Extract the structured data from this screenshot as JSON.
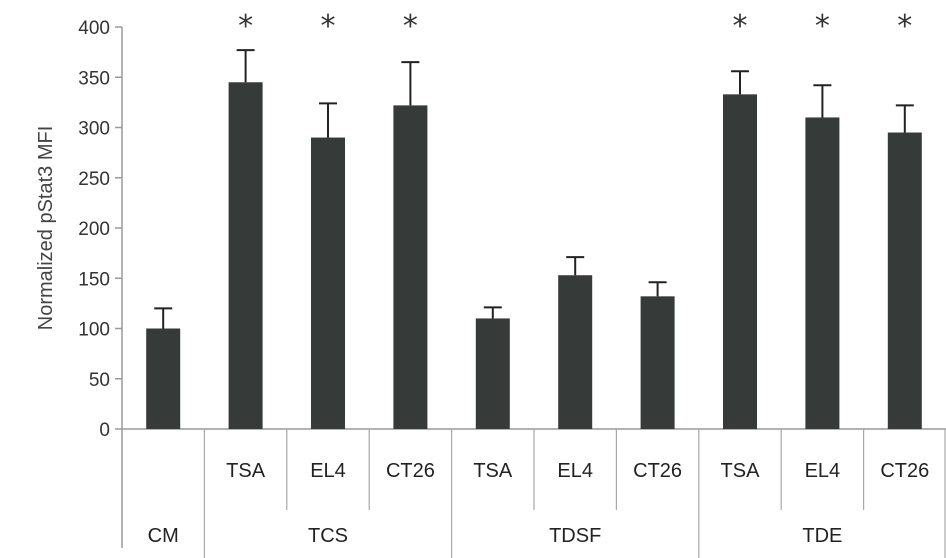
{
  "chart_data": {
    "type": "bar",
    "ylabel": "Normalized pStat3 MFI",
    "ylim": [
      0,
      400
    ],
    "yticks": [
      0,
      50,
      100,
      150,
      200,
      250,
      300,
      350,
      400
    ],
    "categories": [
      "CM",
      "TSA",
      "EL4",
      "CT26",
      "TSA",
      "EL4",
      "CT26",
      "TSA",
      "EL4",
      "CT26"
    ],
    "groups": [
      "CM",
      "TCS",
      "TCS",
      "TCS",
      "TDSF",
      "TDSF",
      "TDSF",
      "TDE",
      "TDE",
      "TDE"
    ],
    "group_labels": [
      {
        "label": "CM",
        "span": [
          0,
          0
        ]
      },
      {
        "label": "TCS",
        "span": [
          1,
          3
        ]
      },
      {
        "label": "TDSF",
        "span": [
          4,
          6
        ]
      },
      {
        "label": "TDE",
        "span": [
          7,
          9
        ]
      }
    ],
    "values": [
      100,
      345,
      290,
      322,
      110,
      153,
      132,
      333,
      310,
      295
    ],
    "errors": [
      20,
      32,
      34,
      43,
      11,
      18,
      14,
      23,
      32,
      27
    ],
    "significance_marker": "*",
    "significant": [
      false,
      true,
      true,
      true,
      false,
      false,
      false,
      true,
      true,
      true
    ],
    "bar_color": "#363a38",
    "grid": false,
    "legend": "none"
  }
}
